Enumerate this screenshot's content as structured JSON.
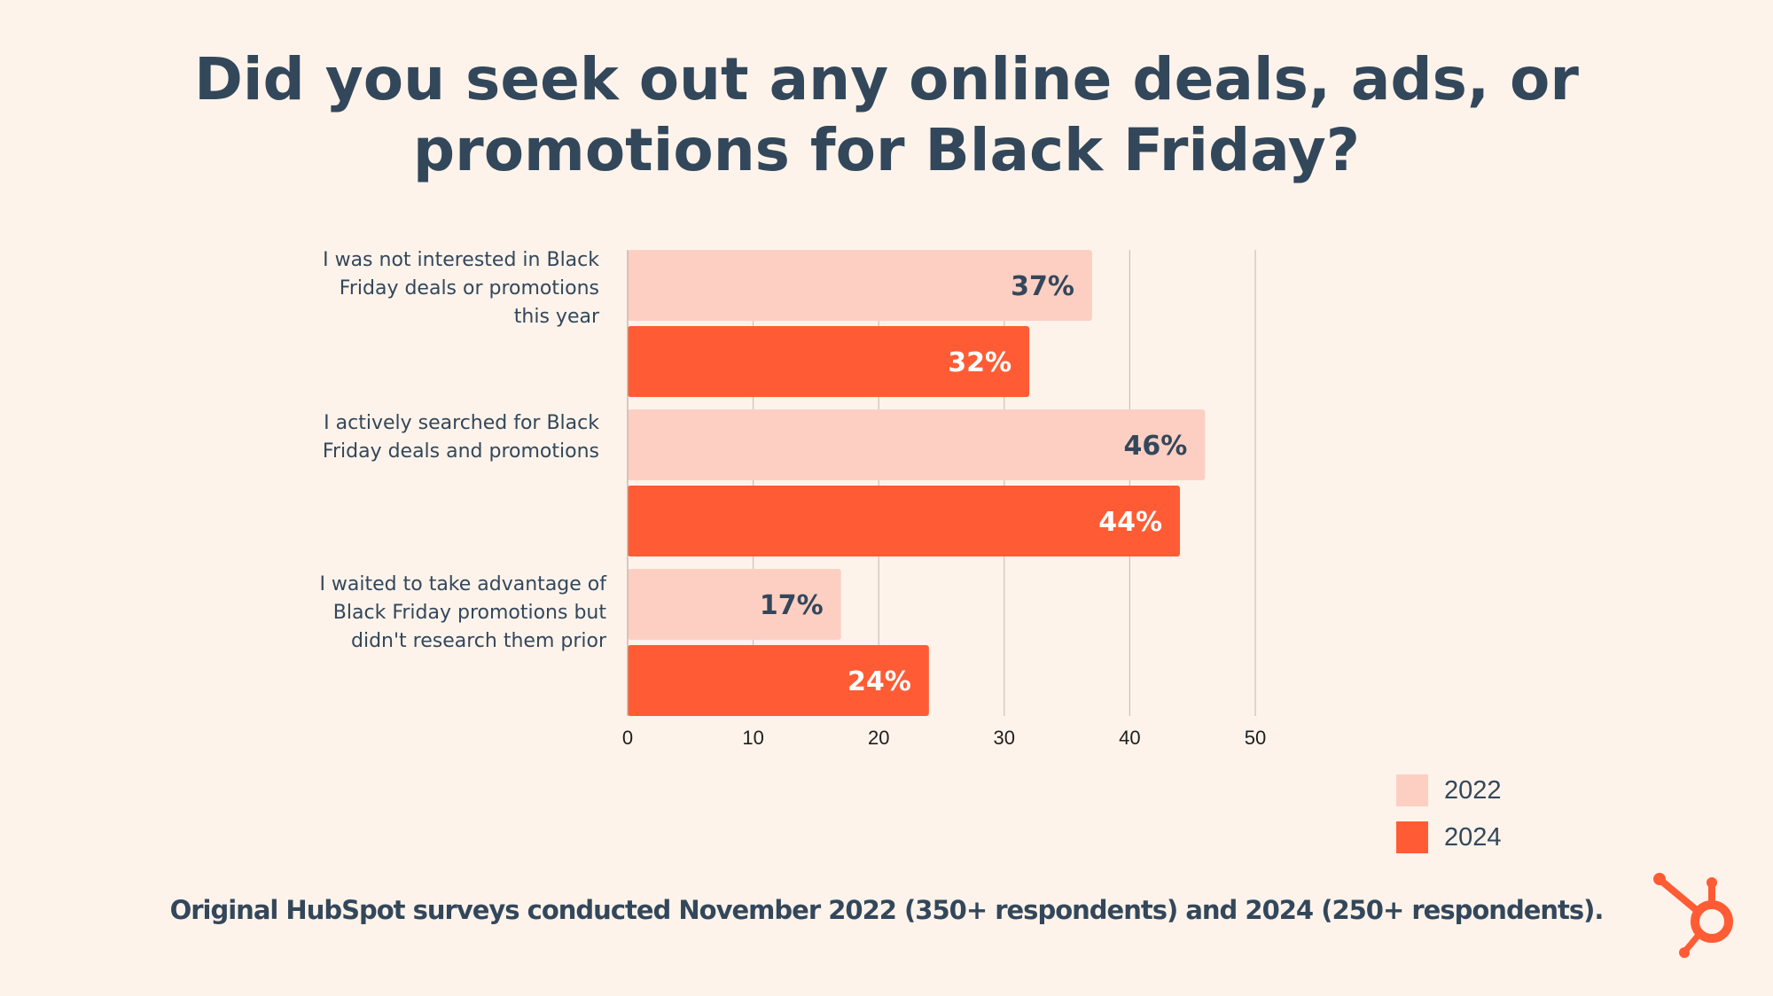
{
  "title": {
    "line1": "Did you seek out any online deals, ads, or",
    "line2": "promotions for Black Friday?"
  },
  "source": "Original HubSpot surveys conducted November 2022 (350+ respondents) and 2024 (250+ respondents).",
  "legend": [
    {
      "label": "2022",
      "color": "#fdcfc3"
    },
    {
      "label": "2024",
      "color": "#ff5c35"
    }
  ],
  "categories": [
    {
      "line1": "I was not interested in Black",
      "line2": "Friday deals or promotions",
      "line3": "this year"
    },
    {
      "line1": "I actively searched for Black",
      "line2": "Friday deals and promotions",
      "line3": ""
    },
    {
      "line1": "I waited to take advantage of",
      "line2": "Black Friday promotions but",
      "line3": "didn't research them prior"
    }
  ],
  "chart_data": {
    "type": "bar",
    "orientation": "horizontal",
    "categories": [
      "I was not interested in Black Friday deals or promotions this year",
      "I actively searched for Black Friday deals and promotions",
      "I waited to take advantage of Black Friday promotions but didn't research them prior"
    ],
    "series": [
      {
        "name": "2022",
        "values": [
          37,
          46,
          17
        ],
        "labels": [
          "37%",
          "46%",
          "17%"
        ],
        "color": "#fdcfc3",
        "label_color": "#33475b"
      },
      {
        "name": "2024",
        "values": [
          32,
          44,
          24
        ],
        "labels": [
          "32%",
          "44%",
          "24%"
        ],
        "color": "#ff5c35",
        "label_color": "#ffffff"
      }
    ],
    "xlim": [
      0,
      50
    ],
    "xticks": [
      "0",
      "10",
      "20",
      "30",
      "40",
      "50"
    ],
    "grid": true,
    "legend_position": "bottom-right"
  },
  "logo": {
    "name": "HubSpot sprocket",
    "color": "#ff5c35"
  }
}
